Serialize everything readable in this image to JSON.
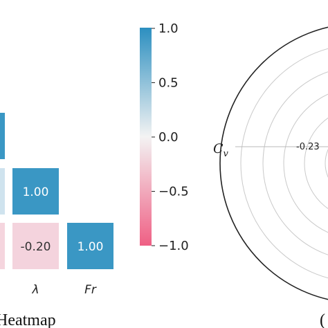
{
  "chart_data": [
    {
      "type": "heatmap",
      "caption": "Heatmap",
      "x_tick_labels": [
        "λ",
        "Fr"
      ],
      "visible_cells": [
        {
          "row": 0,
          "col": 0,
          "value": null,
          "color": "#3a97c4"
        },
        {
          "row": 1,
          "col": 0,
          "value": null,
          "color": "#cfe3ee"
        },
        {
          "row": 1,
          "col": 1,
          "value": 1.0,
          "label": "1.00",
          "color": "#3a97c4"
        },
        {
          "row": 2,
          "col": 0,
          "value": null,
          "color": "#f5d5de"
        },
        {
          "row": 2,
          "col": 1,
          "value": -0.2,
          "label": "-0.20",
          "color": "#f4d3dd"
        },
        {
          "row": 2,
          "col": 2,
          "value": 1.0,
          "label": "1.00",
          "color": "#3a97c4"
        }
      ],
      "colorbar": {
        "range": [
          -1.0,
          1.0
        ],
        "ticks": [
          "1.0",
          "0.5",
          "0.0",
          "−0.5",
          "−1.0"
        ],
        "colors": {
          "high": "#2c8fc0",
          "mid": "#f3f3f3",
          "low": "#ef5f84"
        }
      }
    },
    {
      "type": "radar",
      "caption_fragment": "(",
      "axis_labels": [
        "C_v"
      ],
      "axis_label_main": "C",
      "axis_label_sub": "v",
      "ring_labels": [
        "-0.23"
      ]
    }
  ]
}
